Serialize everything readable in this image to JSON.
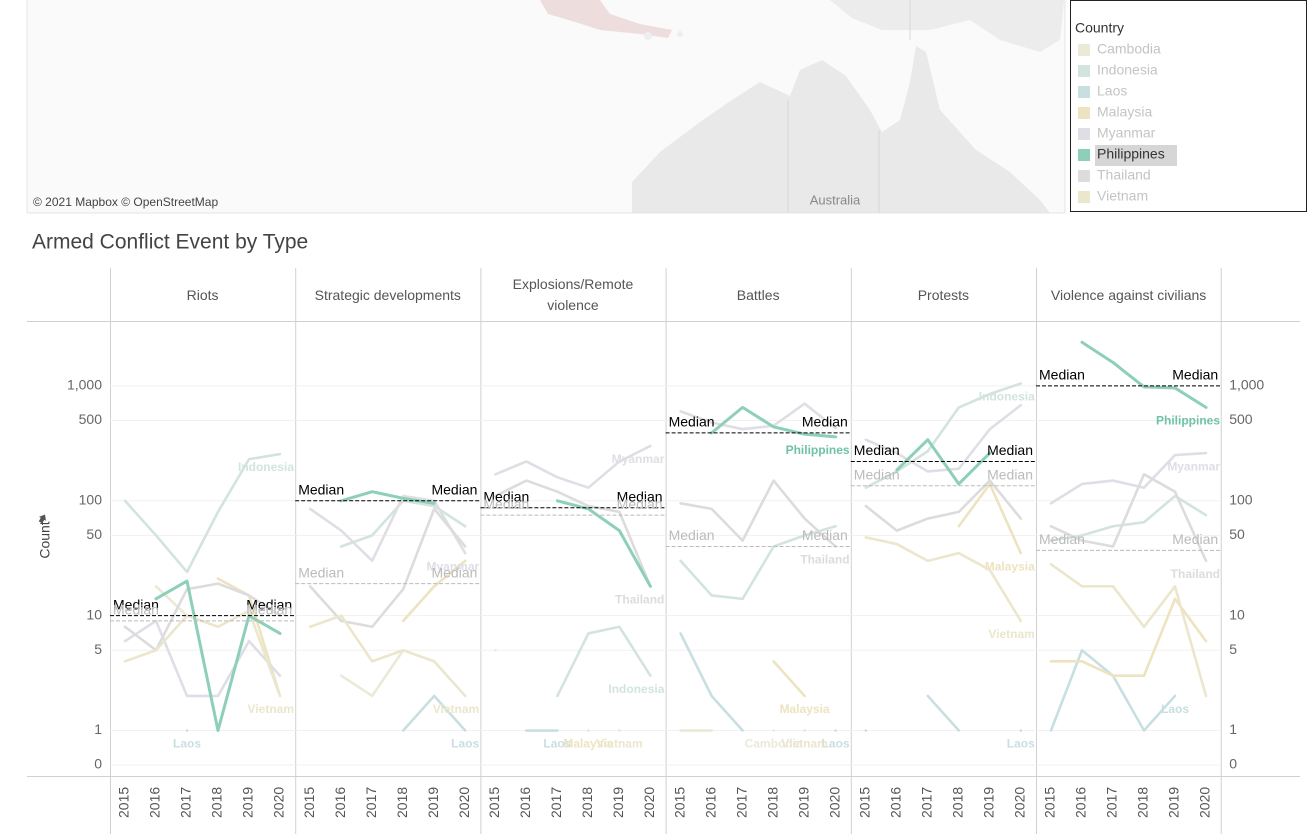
{
  "map": {
    "attribution": "© 2021 Mapbox © OpenStreetMap",
    "place_label": "Australia"
  },
  "legend": {
    "title": "Country",
    "selected": "Philippines",
    "items": [
      {
        "name": "Cambodia",
        "color": "#ebe9d7"
      },
      {
        "name": "Indonesia",
        "color": "#d3e4de"
      },
      {
        "name": "Laos",
        "color": "#c8dfe2"
      },
      {
        "name": "Malaysia",
        "color": "#ede3c0"
      },
      {
        "name": "Myanmar",
        "color": "#dfdee6"
      },
      {
        "name": "Philippines",
        "color": "#8ecfb8"
      },
      {
        "name": "Thailand",
        "color": "#dcdcdc"
      },
      {
        "name": "Vietnam",
        "color": "#ebe6cc"
      }
    ]
  },
  "dashboard_title": "Armed Conflict Event by Type",
  "chart_data": [
    {
      "type": "line",
      "title": "Riots",
      "ylabel": "Count",
      "yscale": "log",
      "grid": true,
      "categories": [
        "2015",
        "2016",
        "2017",
        "2018",
        "2019",
        "2020"
      ],
      "ylim": [
        0.41,
        3600
      ],
      "yticks": [
        0,
        1,
        5,
        10,
        50,
        100,
        500,
        {
          "value": 1000,
          "label": "1,000"
        }
      ],
      "reference_lines": [
        {
          "label": "Median",
          "value": 10,
          "color": "#000000"
        },
        {
          "label": "Median",
          "value": 9,
          "color": "#bbbbbb"
        }
      ],
      "series": [
        {
          "name": "Cambodia",
          "values": [
            null,
            18,
            10,
            null,
            null,
            null
          ]
        },
        {
          "name": "Indonesia",
          "values": [
            100,
            50,
            24,
            80,
            230,
            255
          ],
          "end_label": true
        },
        {
          "name": "Laos",
          "values": [
            null,
            null,
            1,
            null,
            null,
            null
          ],
          "end_label": true
        },
        {
          "name": "Malaysia",
          "values": [
            null,
            null,
            null,
            21,
            15,
            2
          ]
        },
        {
          "name": "Myanmar",
          "values": [
            6,
            9,
            2,
            2,
            6,
            3
          ]
        },
        {
          "name": "Thailand",
          "values": [
            8,
            5,
            17,
            19,
            15,
            10
          ]
        },
        {
          "name": "Vietnam",
          "values": [
            4,
            5,
            10,
            8,
            11,
            2
          ],
          "end_label": true
        },
        {
          "name": "Philippines",
          "values": [
            null,
            14,
            20,
            1,
            10,
            7
          ]
        }
      ]
    },
    {
      "type": "line",
      "title": "Strategic developments",
      "yscale": "log",
      "grid": true,
      "categories": [
        "2015",
        "2016",
        "2017",
        "2018",
        "2019",
        "2020"
      ],
      "ylim": [
        0.41,
        3600
      ],
      "yticks": [
        0,
        1,
        5,
        10,
        50,
        100,
        500,
        {
          "value": 1000,
          "label": "1,000"
        }
      ],
      "reference_lines": [
        {
          "label": "Median",
          "value": 100,
          "color": "#000000"
        },
        {
          "label": "Median",
          "value": 19,
          "color": "#bbbbbb"
        }
      ],
      "series": [
        {
          "name": "Cambodia",
          "values": [
            null,
            3,
            2,
            5,
            null,
            null
          ]
        },
        {
          "name": "Indonesia",
          "values": [
            null,
            40,
            50,
            100,
            90,
            60
          ]
        },
        {
          "name": "Laos",
          "values": [
            null,
            null,
            null,
            1,
            2,
            1
          ],
          "end_label": true
        },
        {
          "name": "Malaysia",
          "values": [
            null,
            null,
            null,
            9,
            18,
            30
          ]
        },
        {
          "name": "Myanmar",
          "values": [
            85,
            55,
            30,
            110,
            100,
            35
          ],
          "end_label": true
        },
        {
          "name": "Thailand",
          "values": [
            18,
            9,
            8,
            17,
            85,
            40
          ]
        },
        {
          "name": "Vietnam",
          "values": [
            8,
            10,
            4,
            5,
            4,
            2
          ],
          "end_label": true
        },
        {
          "name": "Philippines",
          "values": [
            null,
            100,
            120,
            105,
            95,
            null
          ]
        }
      ]
    },
    {
      "type": "line",
      "title": "Explosions/Remote violence",
      "yscale": "log",
      "grid": true,
      "categories": [
        "2015",
        "2016",
        "2017",
        "2018",
        "2019",
        "2020"
      ],
      "ylim": [
        0.41,
        3600
      ],
      "yticks": [
        0,
        1,
        5,
        10,
        50,
        100,
        500,
        {
          "value": 1000,
          "label": "1,000"
        }
      ],
      "reference_lines": [
        {
          "label": "Median",
          "value": 87,
          "color": "#000000"
        },
        {
          "label": "Median",
          "value": 75,
          "color": "#bbbbbb"
        }
      ],
      "series": [
        {
          "name": "Cambodia",
          "values": [
            5,
            null,
            null,
            null,
            null,
            null
          ]
        },
        {
          "name": "Indonesia",
          "values": [
            null,
            null,
            2,
            7,
            8,
            3
          ],
          "end_label": true
        },
        {
          "name": "Laos",
          "values": [
            null,
            1,
            1,
            null,
            null,
            null
          ],
          "end_label": true
        },
        {
          "name": "Malaysia",
          "values": [
            null,
            null,
            null,
            1,
            null,
            null
          ],
          "end_label": true
        },
        {
          "name": "Myanmar",
          "values": [
            170,
            220,
            160,
            130,
            220,
            300
          ],
          "end_label": true
        },
        {
          "name": "Thailand",
          "values": [
            110,
            150,
            120,
            90,
            80,
            18
          ],
          "end_label": true
        },
        {
          "name": "Vietnam",
          "values": [
            null,
            null,
            null,
            null,
            1,
            null
          ],
          "end_label": true
        },
        {
          "name": "Philippines",
          "values": [
            null,
            null,
            100,
            85,
            55,
            18
          ]
        }
      ]
    },
    {
      "type": "line",
      "title": "Battles",
      "yscale": "log",
      "grid": true,
      "categories": [
        "2015",
        "2016",
        "2017",
        "2018",
        "2019",
        "2020"
      ],
      "ylim": [
        0.41,
        3600
      ],
      "yticks": [
        0,
        1,
        5,
        10,
        50,
        100,
        500,
        {
          "value": 1000,
          "label": "1,000"
        }
      ],
      "reference_lines": [
        {
          "label": "Median",
          "value": 390,
          "color": "#000000"
        },
        {
          "label": "Median",
          "value": 40,
          "color": "#bbbbbb"
        }
      ],
      "series": [
        {
          "name": "Cambodia",
          "values": [
            1,
            1,
            null,
            1,
            null,
            null
          ],
          "end_label": true
        },
        {
          "name": "Indonesia",
          "values": [
            30,
            15,
            14,
            40,
            50,
            60
          ]
        },
        {
          "name": "Laos",
          "values": [
            7,
            2,
            1,
            null,
            null,
            1
          ],
          "end_label": true
        },
        {
          "name": "Malaysia",
          "values": [
            null,
            null,
            null,
            4,
            2,
            null
          ],
          "end_label": true
        },
        {
          "name": "Myanmar",
          "values": [
            600,
            480,
            420,
            450,
            700,
            430
          ]
        },
        {
          "name": "Thailand",
          "values": [
            95,
            85,
            45,
            150,
            70,
            40
          ],
          "end_label": true
        },
        {
          "name": "Vietnam",
          "values": [
            null,
            null,
            null,
            null,
            1,
            null
          ],
          "end_label": true
        },
        {
          "name": "Philippines",
          "values": [
            null,
            390,
            650,
            440,
            380,
            360
          ],
          "end_label": true
        }
      ]
    },
    {
      "type": "line",
      "title": "Protests",
      "yscale": "log",
      "grid": true,
      "categories": [
        "2015",
        "2016",
        "2017",
        "2018",
        "2019",
        "2020"
      ],
      "ylim": [
        0.41,
        3600
      ],
      "yticks": [
        0,
        1,
        5,
        10,
        50,
        100,
        500,
        {
          "value": 1000,
          "label": "1,000"
        }
      ],
      "reference_lines": [
        {
          "label": "Median",
          "value": 220,
          "color": "#000000"
        },
        {
          "label": "Median",
          "value": 135,
          "color": "#bbbbbb"
        }
      ],
      "series": [
        {
          "name": "Indonesia",
          "values": [
            130,
            180,
            270,
            650,
            850,
            1050
          ],
          "end_label": true
        },
        {
          "name": "Laos",
          "values": [
            1,
            null,
            2,
            1,
            null,
            1
          ],
          "end_label": true
        },
        {
          "name": "Malaysia",
          "values": [
            null,
            null,
            null,
            60,
            140,
            35
          ],
          "end_label": true
        },
        {
          "name": "Myanmar",
          "values": [
            340,
            260,
            180,
            190,
            420,
            680
          ]
        },
        {
          "name": "Thailand",
          "values": [
            90,
            55,
            70,
            80,
            150,
            70
          ]
        },
        {
          "name": "Vietnam",
          "values": [
            48,
            42,
            30,
            35,
            25,
            9
          ],
          "end_label": true
        },
        {
          "name": "Philippines",
          "values": [
            null,
            185,
            340,
            140,
            260,
            null
          ]
        }
      ]
    },
    {
      "type": "line",
      "title": "Violence against civilians",
      "yscale": "log",
      "grid": true,
      "categories": [
        "2015",
        "2016",
        "2017",
        "2018",
        "2019",
        "2020"
      ],
      "ylim": [
        0.41,
        3600
      ],
      "yticks": [
        0,
        1,
        5,
        10,
        50,
        100,
        500,
        {
          "value": 1000,
          "label": "1,000"
        }
      ],
      "reference_lines": [
        {
          "label": "Median",
          "value": 1000,
          "color": "#000000"
        },
        {
          "label": "Median",
          "value": 37,
          "color": "#bbbbbb"
        }
      ],
      "series": [
        {
          "name": "Indonesia",
          "values": [
            45,
            50,
            60,
            65,
            110,
            75
          ]
        },
        {
          "name": "Laos",
          "values": [
            1,
            5,
            3,
            1,
            2,
            null
          ],
          "end_label": true
        },
        {
          "name": "Malaysia",
          "values": [
            4,
            4,
            3,
            3,
            14,
            6
          ]
        },
        {
          "name": "Myanmar",
          "values": [
            95,
            140,
            150,
            130,
            250,
            260
          ],
          "end_label": true
        },
        {
          "name": "Thailand",
          "values": [
            60,
            45,
            40,
            170,
            120,
            30
          ],
          "end_label": true
        },
        {
          "name": "Vietnam",
          "values": [
            28,
            18,
            18,
            8,
            18,
            2
          ]
        },
        {
          "name": "Philippines",
          "values": [
            null,
            2400,
            1600,
            980,
            960,
            650
          ],
          "end_label": true
        }
      ]
    }
  ]
}
